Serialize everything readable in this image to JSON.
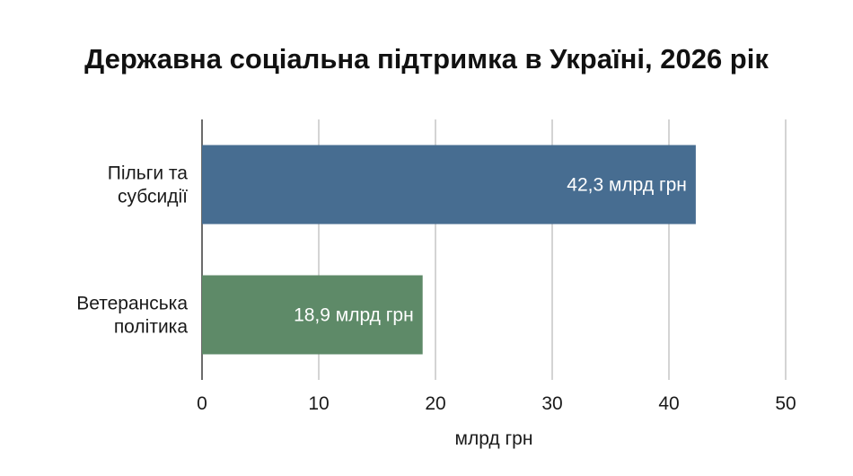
{
  "chart_data": {
    "type": "bar",
    "orientation": "horizontal",
    "title": "Державна соціальна підтримка в Україні, 2026 рік",
    "categories": [
      "Пільги та субсидії",
      "Ветеранська політика"
    ],
    "category_lines": [
      [
        "Пільги та",
        "субсидії"
      ],
      [
        "Ветеранська",
        "політика"
      ]
    ],
    "values": [
      42.3,
      18.9
    ],
    "data_labels": [
      "42,3 млрд грн",
      "18,9 млрд грн"
    ],
    "colors": [
      "#476d91",
      "#5e8a68"
    ],
    "xlabel": "млрд грн",
    "ylabel": "",
    "xlim": [
      0,
      50
    ],
    "xticks": [
      0,
      10,
      20,
      30,
      40,
      50
    ],
    "grid": true,
    "legend": "none"
  }
}
